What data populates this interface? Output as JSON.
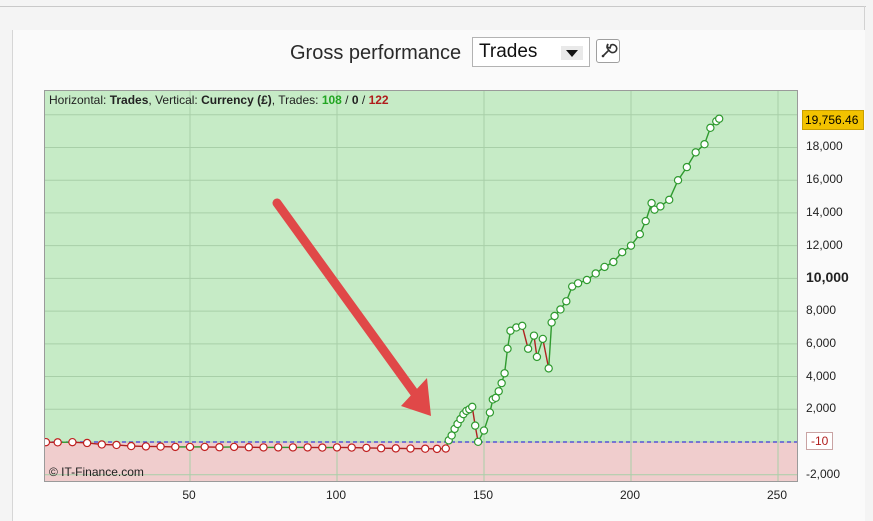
{
  "header": {
    "title": "Gross performance",
    "dropdown_value": "Trades"
  },
  "legend": {
    "horizontal_label": "Horizontal: ",
    "horizontal_value": "Trades",
    "vertical_label": ", Vertical: ",
    "vertical_value": "Currency (£)",
    "trades_label": ", Trades: ",
    "wins": "108",
    "sep1": " / ",
    "even": "0",
    "sep2": " / ",
    "losses": "122"
  },
  "copyright": "© IT-Finance.com",
  "last_value_badge": "19,756.46",
  "zero_badge": "-10",
  "colors": {
    "profit_area": "#c6ebc6",
    "loss_area": "#f0cdcd",
    "win_line": "#2f9a2f",
    "loss_line": "#b02020",
    "zero_line": "#3a3ad8",
    "arrow": "#e04848"
  },
  "chart_data": {
    "type": "line",
    "title": "Gross performance",
    "xlabel": "Trades",
    "ylabel": "Currency (£)",
    "xlim": [
      0,
      255
    ],
    "ylim": [
      -2700,
      22200
    ],
    "x_ticks": [
      50,
      100,
      150,
      200,
      250
    ],
    "y_ticks": [
      -2000,
      2000,
      4000,
      6000,
      8000,
      10000,
      12000,
      14000,
      16000,
      18000
    ],
    "y_tick_labels": [
      "-2,000",
      "2,000",
      "4,000",
      "6,000",
      "8,000",
      "10,000",
      "12,000",
      "14,000",
      "16,000",
      "18,000"
    ],
    "grid": true,
    "points": [
      [
        1,
        -10
      ],
      [
        5,
        -20
      ],
      [
        10,
        -10
      ],
      [
        15,
        -60
      ],
      [
        20,
        -150
      ],
      [
        25,
        -180
      ],
      [
        30,
        -250
      ],
      [
        35,
        -270
      ],
      [
        40,
        -280
      ],
      [
        45,
        -300
      ],
      [
        50,
        -300
      ],
      [
        55,
        -300
      ],
      [
        60,
        -320
      ],
      [
        65,
        -300
      ],
      [
        70,
        -320
      ],
      [
        75,
        -330
      ],
      [
        80,
        -330
      ],
      [
        85,
        -330
      ],
      [
        90,
        -330
      ],
      [
        95,
        -340
      ],
      [
        100,
        -330
      ],
      [
        105,
        -340
      ],
      [
        110,
        -360
      ],
      [
        115,
        -380
      ],
      [
        120,
        -390
      ],
      [
        125,
        -400
      ],
      [
        130,
        -410
      ],
      [
        134,
        -420
      ],
      [
        137,
        -400
      ],
      [
        138,
        100
      ],
      [
        139,
        400
      ],
      [
        140,
        800
      ],
      [
        141,
        1100
      ],
      [
        142,
        1400
      ],
      [
        143,
        1700
      ],
      [
        144,
        1900
      ],
      [
        145,
        2000
      ],
      [
        146,
        2150
      ],
      [
        147,
        1000
      ],
      [
        148,
        10
      ],
      [
        150,
        700
      ],
      [
        152,
        1800
      ],
      [
        153,
        2600
      ],
      [
        154,
        2700
      ],
      [
        155,
        3100
      ],
      [
        156,
        3600
      ],
      [
        157,
        4200
      ],
      [
        158,
        5700
      ],
      [
        159,
        6800
      ],
      [
        161,
        7000
      ],
      [
        163,
        7100
      ],
      [
        165,
        5700
      ],
      [
        167,
        6500
      ],
      [
        168,
        5200
      ],
      [
        170,
        6300
      ],
      [
        172,
        4500
      ],
      [
        173,
        7300
      ],
      [
        174,
        7700
      ],
      [
        176,
        8100
      ],
      [
        178,
        8600
      ],
      [
        180,
        9500
      ],
      [
        182,
        9700
      ],
      [
        185,
        9900
      ],
      [
        188,
        10300
      ],
      [
        191,
        10700
      ],
      [
        194,
        11000
      ],
      [
        197,
        11600
      ],
      [
        200,
        12000
      ],
      [
        203,
        12700
      ],
      [
        205,
        13500
      ],
      [
        207,
        14600
      ],
      [
        208,
        14200
      ],
      [
        210,
        14400
      ],
      [
        213,
        14800
      ],
      [
        216,
        16000
      ],
      [
        219,
        16800
      ],
      [
        222,
        17700
      ],
      [
        225,
        18200
      ],
      [
        227,
        19200
      ],
      [
        229,
        19600
      ],
      [
        230,
        19756
      ]
    ]
  }
}
